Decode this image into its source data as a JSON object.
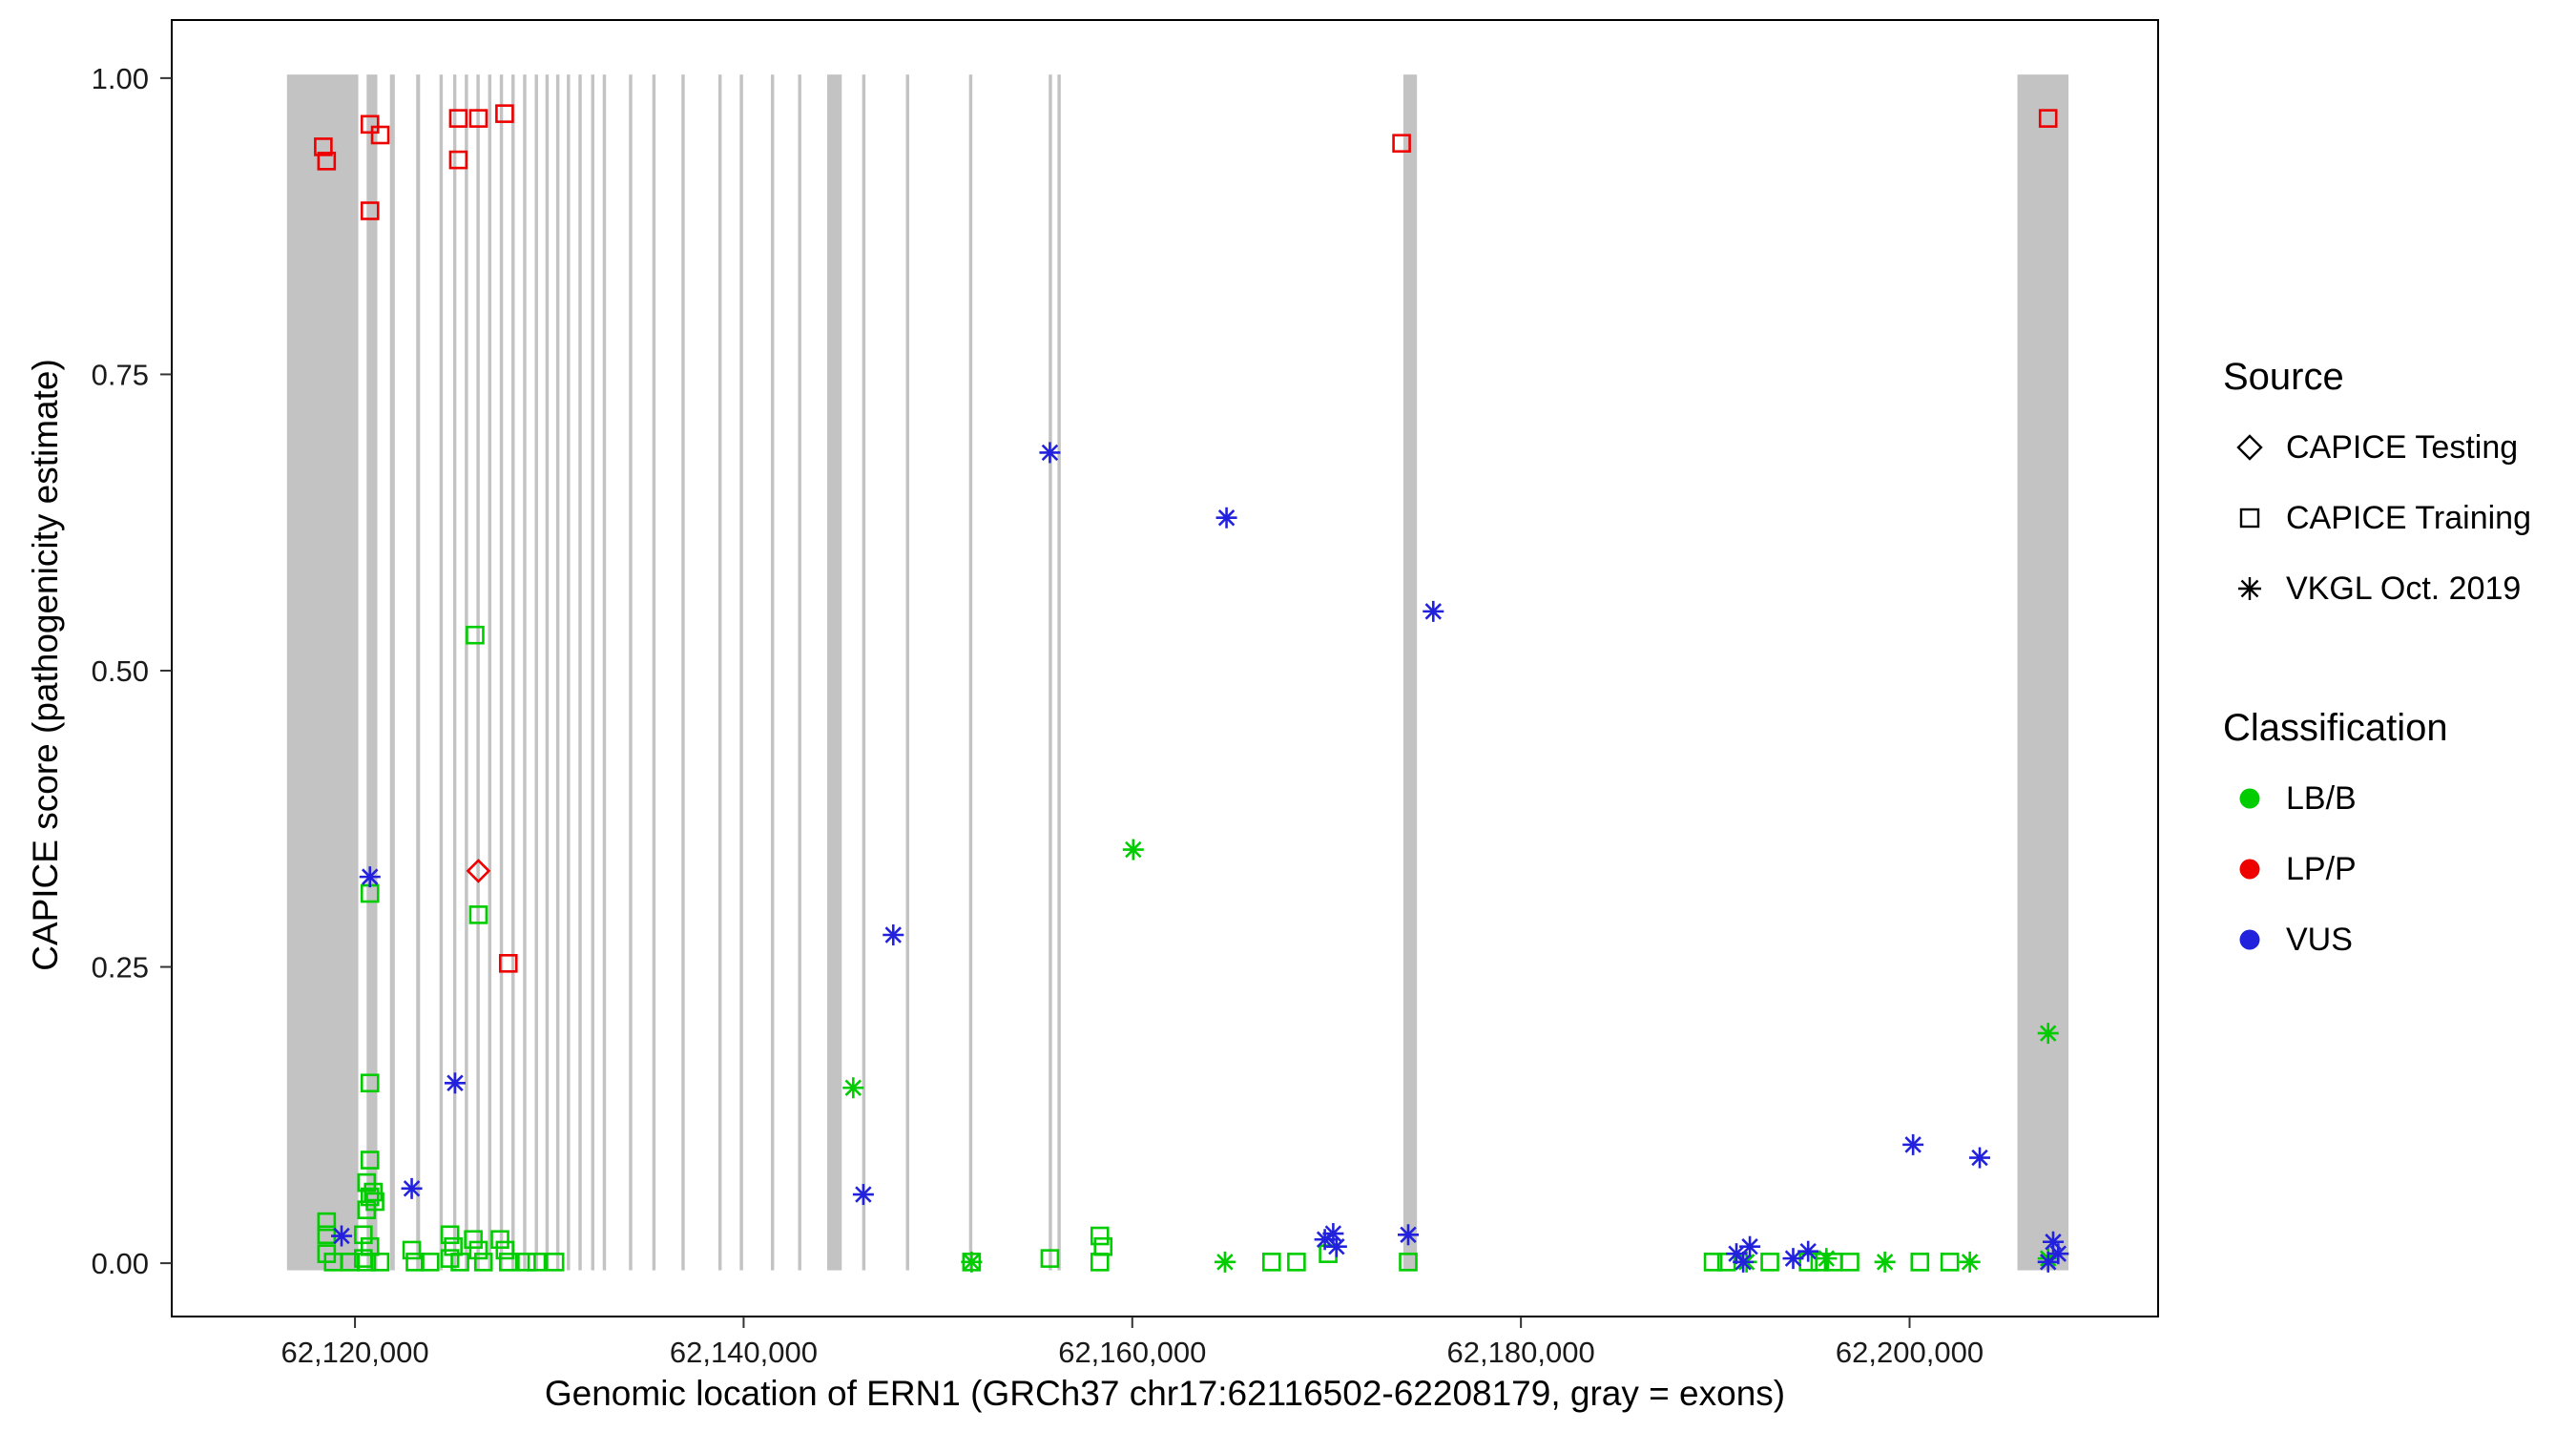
{
  "chart_data": {
    "type": "scatter",
    "title": "",
    "xlabel": "Genomic location of ERN1 (GRCh37 chr17:62116502-62208179, gray = exons)",
    "ylabel": "CAPICE score (pathogenicity estimate)",
    "x_domain": [
      62110570,
      62212790
    ],
    "y_domain": [
      -0.045,
      1.049
    ],
    "x_ticks": [
      {
        "value": 62120000,
        "label": "62,120,000"
      },
      {
        "value": 62140000,
        "label": "62,140,000"
      },
      {
        "value": 62160000,
        "label": "62,160,000"
      },
      {
        "value": 62180000,
        "label": "62,180,000"
      },
      {
        "value": 62200000,
        "label": "62,200,000"
      }
    ],
    "y_ticks": [
      {
        "value": 0.0,
        "label": "0.00"
      },
      {
        "value": 0.25,
        "label": "0.25"
      },
      {
        "value": 0.5,
        "label": "0.50"
      },
      {
        "value": 0.75,
        "label": "0.75"
      },
      {
        "value": 1.0,
        "label": "1.00"
      }
    ],
    "exon_color": "#c3c3c3",
    "exons": [
      [
        62116502,
        62120170
      ],
      [
        62120600,
        62121150
      ],
      [
        62121800,
        62122050
      ],
      [
        62123150,
        62123350
      ],
      [
        62124350,
        62124520
      ],
      [
        62125050,
        62125220
      ],
      [
        62125650,
        62125820
      ],
      [
        62126250,
        62126420
      ],
      [
        62126850,
        62127020
      ],
      [
        62127450,
        62127620
      ],
      [
        62128050,
        62128220
      ],
      [
        62128650,
        62128820
      ],
      [
        62129250,
        62129420
      ],
      [
        62129800,
        62129970
      ],
      [
        62130350,
        62130520
      ],
      [
        62130900,
        62131070
      ],
      [
        62131500,
        62131670
      ],
      [
        62132150,
        62132320
      ],
      [
        62132750,
        62132920
      ],
      [
        62134100,
        62134270
      ],
      [
        62135300,
        62135470
      ],
      [
        62136800,
        62136970
      ],
      [
        62138700,
        62138870
      ],
      [
        62139800,
        62139970
      ],
      [
        62141400,
        62141570
      ],
      [
        62142800,
        62142970
      ],
      [
        62144300,
        62145050
      ],
      [
        62146100,
        62146270
      ],
      [
        62148350,
        62148520
      ],
      [
        62151600,
        62151770
      ],
      [
        62155700,
        62155870
      ],
      [
        62156150,
        62156320
      ],
      [
        62173950,
        62174650
      ],
      [
        62205550,
        62208179
      ]
    ],
    "series": [
      {
        "name": "LP/P - CAPICE Training",
        "source": "CAPICE Training",
        "classification": "LP/P",
        "shape": "square",
        "color": "#ee0000",
        "points": [
          [
            62118370,
            0.942
          ],
          [
            62118540,
            0.93
          ],
          [
            62120770,
            0.961
          ],
          [
            62121300,
            0.952
          ],
          [
            62120770,
            0.888
          ],
          [
            62125320,
            0.966
          ],
          [
            62126350,
            0.966
          ],
          [
            62125320,
            0.931
          ],
          [
            62127700,
            0.97
          ],
          [
            62127890,
            0.253
          ],
          [
            62173860,
            0.945
          ],
          [
            62207130,
            0.966
          ]
        ]
      },
      {
        "name": "LP/P - CAPICE Testing",
        "source": "CAPICE Testing",
        "classification": "LP/P",
        "shape": "diamond",
        "color": "#ee0000",
        "points": [
          [
            62126350,
            0.331
          ]
        ]
      },
      {
        "name": "LB/B - CAPICE Training",
        "source": "CAPICE Training",
        "classification": "LB/B",
        "shape": "square",
        "color": "#00cc00",
        "points": [
          [
            62126180,
            0.53
          ],
          [
            62120770,
            0.312
          ],
          [
            62126350,
            0.294
          ],
          [
            62120770,
            0.152
          ],
          [
            62120770,
            0.087
          ],
          [
            62120600,
            0.068
          ],
          [
            62120940,
            0.06
          ],
          [
            62121030,
            0.052
          ],
          [
            62120770,
            0.056
          ],
          [
            62120600,
            0.045
          ],
          [
            62118540,
            0.035
          ],
          [
            62118540,
            0.024
          ],
          [
            62120430,
            0.024
          ],
          [
            62120770,
            0.014
          ],
          [
            62118540,
            0.008
          ],
          [
            62118880,
            0.001
          ],
          [
            62119740,
            0.001
          ],
          [
            62120430,
            0.004
          ],
          [
            62121290,
            0.001
          ],
          [
            62120600,
            0.001
          ],
          [
            62122920,
            0.011
          ],
          [
            62123090,
            0.001
          ],
          [
            62123860,
            0.001
          ],
          [
            62124890,
            0.024
          ],
          [
            62125060,
            0.014
          ],
          [
            62124890,
            0.004
          ],
          [
            62125400,
            0.001
          ],
          [
            62126090,
            0.02
          ],
          [
            62126350,
            0.011
          ],
          [
            62126610,
            0.001
          ],
          [
            62127460,
            0.02
          ],
          [
            62127720,
            0.011
          ],
          [
            62127890,
            0.001
          ],
          [
            62128830,
            0.001
          ],
          [
            62129350,
            0.001
          ],
          [
            62130290,
            0.001
          ],
          [
            62151730,
            0.001
          ],
          [
            62155760,
            0.004
          ],
          [
            62158330,
            0.023
          ],
          [
            62158500,
            0.014
          ],
          [
            62158330,
            0.001
          ],
          [
            62167170,
            0.001
          ],
          [
            62168450,
            0.001
          ],
          [
            62170080,
            0.008
          ],
          [
            62174200,
            0.001
          ],
          [
            62189890,
            0.001
          ],
          [
            62190580,
            0.001
          ],
          [
            62192810,
            0.001
          ],
          [
            62194780,
            0.001
          ],
          [
            62195380,
            0.001
          ],
          [
            62196070,
            0.001
          ],
          [
            62196930,
            0.001
          ],
          [
            62200530,
            0.001
          ],
          [
            62202070,
            0.001
          ]
        ]
      },
      {
        "name": "LB/B - VKGL Oct. 2019",
        "source": "VKGL Oct. 2019",
        "classification": "LB/B",
        "shape": "asterisk",
        "color": "#00cc00",
        "points": [
          [
            62145640,
            0.148
          ],
          [
            62160050,
            0.349
          ],
          [
            62207130,
            0.194
          ],
          [
            62164770,
            0.001
          ],
          [
            62151730,
            0.001
          ],
          [
            62191610,
            0.001
          ],
          [
            62195720,
            0.004
          ],
          [
            62198730,
            0.001
          ],
          [
            62203100,
            0.001
          ],
          [
            62207130,
            0.004
          ]
        ]
      },
      {
        "name": "VUS - VKGL Oct. 2019",
        "source": "VKGL Oct. 2019",
        "classification": "VUS",
        "shape": "asterisk",
        "color": "#2222dd",
        "points": [
          [
            62120770,
            0.326
          ],
          [
            62125150,
            0.152
          ],
          [
            62122920,
            0.063
          ],
          [
            62119310,
            0.023
          ],
          [
            62155760,
            0.684
          ],
          [
            62164850,
            0.629
          ],
          [
            62175490,
            0.55
          ],
          [
            62147700,
            0.277
          ],
          [
            62146160,
            0.058
          ],
          [
            62169910,
            0.02
          ],
          [
            62170340,
            0.025
          ],
          [
            62170510,
            0.014
          ],
          [
            62174200,
            0.024
          ],
          [
            62200180,
            0.1
          ],
          [
            62203610,
            0.089
          ],
          [
            62191090,
            0.008
          ],
          [
            62191780,
            0.014
          ],
          [
            62191440,
            0.001
          ],
          [
            62194010,
            0.004
          ],
          [
            62194780,
            0.01
          ],
          [
            62207390,
            0.018
          ],
          [
            62207650,
            0.008
          ],
          [
            62207130,
            0.001
          ]
        ]
      }
    ]
  },
  "legend": {
    "source_title": "Source",
    "source_items": [
      {
        "label": "CAPICE Testing",
        "shape": "diamond"
      },
      {
        "label": "CAPICE Training",
        "shape": "square"
      },
      {
        "label": "VKGL Oct. 2019",
        "shape": "asterisk"
      }
    ],
    "classification_title": "Classification",
    "classification_items": [
      {
        "label": "LB/B",
        "color": "#00cc00"
      },
      {
        "label": "LP/P",
        "color": "#ee0000"
      },
      {
        "label": "VUS",
        "color": "#2222dd"
      }
    ]
  }
}
